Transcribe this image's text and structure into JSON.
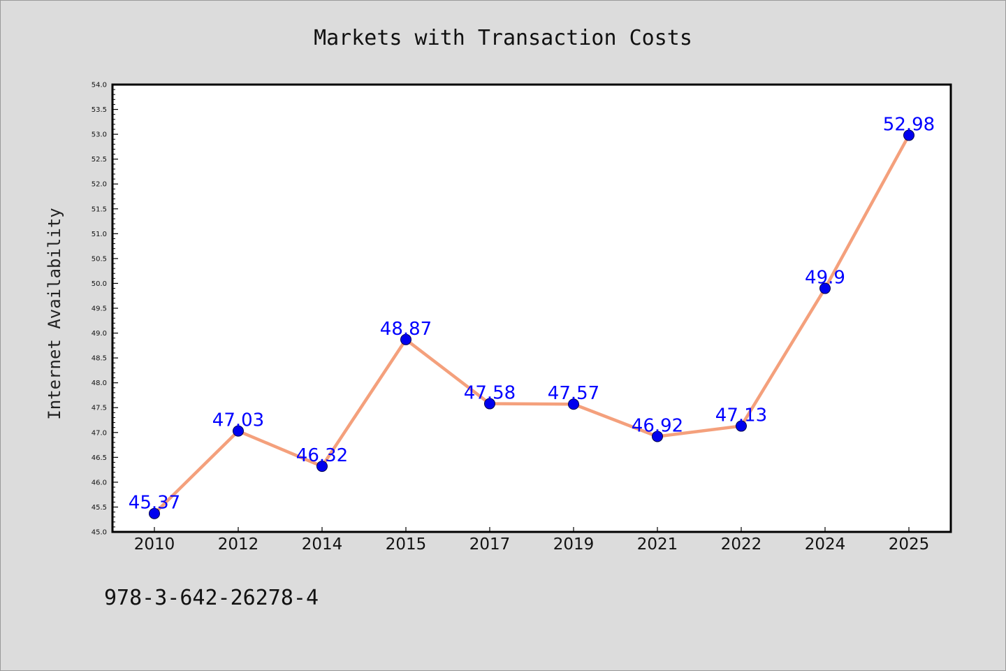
{
  "chart_data": {
    "type": "line",
    "title": "Markets with Transaction Costs",
    "xlabel": "",
    "ylabel": "Internet Availability",
    "categories": [
      "2010",
      "2012",
      "2014",
      "2015",
      "2017",
      "2019",
      "2021",
      "2022",
      "2024",
      "2025"
    ],
    "series": [
      {
        "values": [
          45.37,
          47.03,
          46.32,
          48.87,
          47.58,
          47.57,
          46.92,
          47.13,
          49.9,
          52.98
        ],
        "data_labels": [
          "45.37",
          "47.03",
          "46.32",
          "48.87",
          "47.58",
          "47.57",
          "46.92",
          "47.13",
          "49.9",
          "52.98"
        ]
      }
    ],
    "ylim": [
      45.0,
      54.0
    ],
    "yticks": [
      "45.0",
      "45.5",
      "46.0",
      "46.5",
      "47.0",
      "47.5",
      "48.0",
      "48.5",
      "49.0",
      "49.5",
      "50.0",
      "50.5",
      "51.0",
      "51.5",
      "52.0",
      "52.5",
      "53.0",
      "53.5",
      "54.0"
    ],
    "grid": false,
    "colors": {
      "line": "#f4a07c",
      "marker": "#0000ee",
      "label": "#0000ff",
      "background": "#dcdcdc",
      "plot_background": "#ffffff"
    }
  },
  "footer": {
    "isbn": "978-3-642-26278-4"
  }
}
